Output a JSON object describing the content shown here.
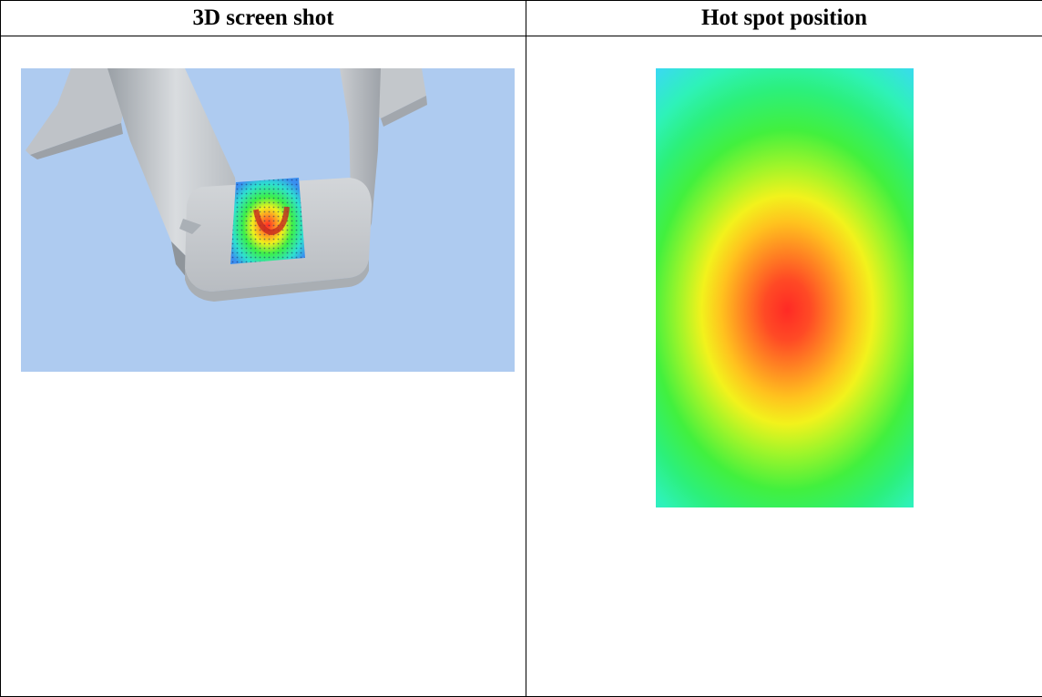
{
  "table": {
    "headers": {
      "left": "3D screen shot",
      "right": "Hot spot position"
    }
  },
  "images": {
    "left": {
      "icon": "3d-model-render",
      "background_color": "#aecbf0",
      "model_color": "#c7cbcf"
    },
    "right": {
      "icon": "heatmap-image",
      "hot_color": "#ff2a25",
      "cold_color": "#3a8ef0"
    }
  }
}
